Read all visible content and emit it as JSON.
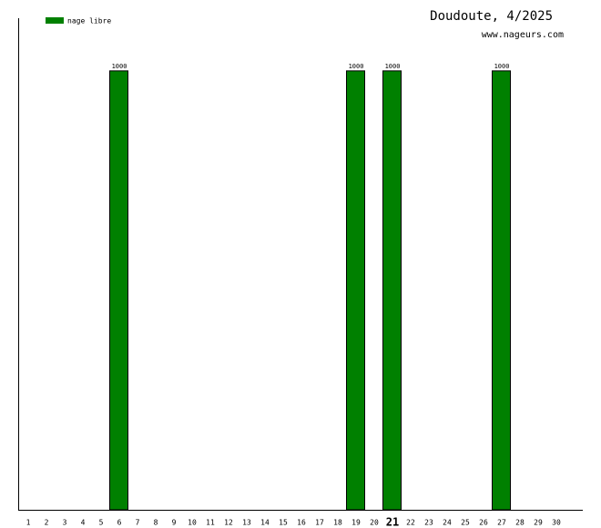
{
  "chart_data": {
    "type": "bar",
    "title": "Doudoute, 4/2025",
    "subtitle": "www.nageurs.com",
    "categories": [
      "1",
      "2",
      "3",
      "4",
      "5",
      "6",
      "7",
      "8",
      "9",
      "10",
      "11",
      "12",
      "13",
      "14",
      "15",
      "16",
      "17",
      "18",
      "19",
      "20",
      "21",
      "22",
      "23",
      "24",
      "25",
      "26",
      "27",
      "28",
      "29",
      "30"
    ],
    "series": [
      {
        "name": "nage libre",
        "color": "#008000",
        "values": [
          0,
          0,
          0,
          0,
          0,
          1000,
          0,
          0,
          0,
          0,
          0,
          0,
          0,
          0,
          0,
          0,
          0,
          0,
          1000,
          0,
          1000,
          0,
          0,
          0,
          0,
          0,
          1000,
          0,
          0,
          0
        ]
      }
    ],
    "ylim": [
      0,
      1120
    ],
    "highlighted_category": "21",
    "legend": "top-left"
  }
}
